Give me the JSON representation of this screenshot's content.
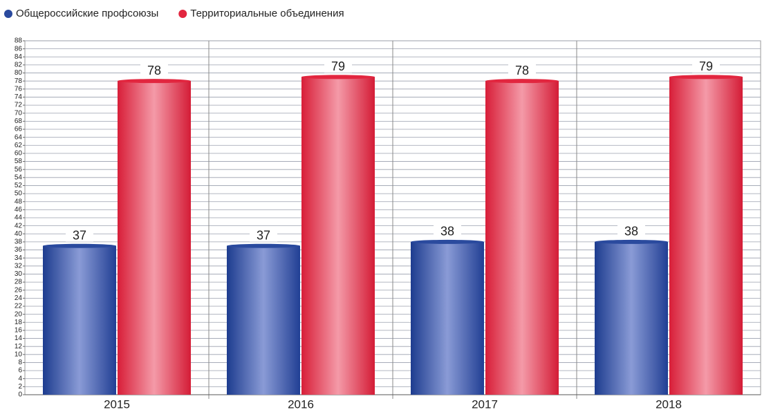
{
  "chart_data": {
    "type": "bar",
    "categories": [
      "2015",
      "2016",
      "2017",
      "2018"
    ],
    "series": [
      {
        "name": "Общероссийские профсоюзы",
        "color": "#2a4a9e",
        "values": [
          37,
          37,
          38,
          38
        ]
      },
      {
        "name": "Территориальные объединения",
        "color": "#e2263f",
        "values": [
          78,
          79,
          78,
          79
        ]
      }
    ],
    "ylim": [
      0,
      88
    ],
    "yticks": [
      0,
      2,
      4,
      6,
      8,
      10,
      12,
      14,
      16,
      18,
      20,
      22,
      24,
      26,
      28,
      30,
      32,
      34,
      36,
      38,
      40,
      42,
      44,
      46,
      48,
      50,
      52,
      54,
      56,
      58,
      60,
      62,
      64,
      66,
      68,
      70,
      72,
      74,
      76,
      78,
      80,
      82,
      84,
      86,
      88
    ],
    "grid": true,
    "legend": "top-left"
  }
}
